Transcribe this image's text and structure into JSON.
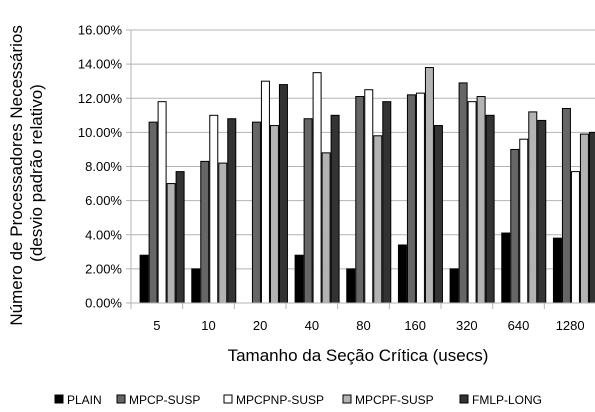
{
  "chart_data": {
    "type": "bar",
    "xlabel": "Tamanho da Seção Crítica (usecs)",
    "ylabel": [
      "Número de Processadores Necessários",
      "(desvio padrão relativo)"
    ],
    "categories": [
      "5",
      "10",
      "20",
      "40",
      "80",
      "160",
      "320",
      "640",
      "1280"
    ],
    "ylim": [
      0,
      16
    ],
    "yticks": [
      "0.00%",
      "2.00%",
      "4.00%",
      "6.00%",
      "8.00%",
      "10.00%",
      "12.00%",
      "14.00%",
      "16.00%"
    ],
    "grid": "horizontal",
    "legend_position": "bottom",
    "series": [
      {
        "name": "PLAIN",
        "color": "#000000",
        "values": [
          2.8,
          2.0,
          0.0,
          2.8,
          2.0,
          3.4,
          2.0,
          4.1,
          3.8
        ]
      },
      {
        "name": "MPCP-SUSP",
        "color": "#666666",
        "values": [
          10.6,
          8.3,
          10.6,
          10.8,
          12.1,
          12.2,
          12.9,
          9.0,
          11.4
        ]
      },
      {
        "name": "MPCPNP-SUSP",
        "color": "#ffffff",
        "values": [
          11.8,
          11.0,
          13.0,
          13.5,
          12.5,
          12.3,
          11.8,
          9.6,
          7.7
        ]
      },
      {
        "name": "MPCPF-SUSP",
        "color": "#b3b3b3",
        "values": [
          7.0,
          8.2,
          10.4,
          8.8,
          9.8,
          13.8,
          12.1,
          11.2,
          9.9
        ]
      },
      {
        "name": "FMLP-LONG",
        "color": "#333333",
        "values": [
          7.7,
          10.8,
          12.8,
          11.0,
          11.8,
          10.4,
          11.0,
          10.7,
          10.0
        ]
      }
    ]
  }
}
